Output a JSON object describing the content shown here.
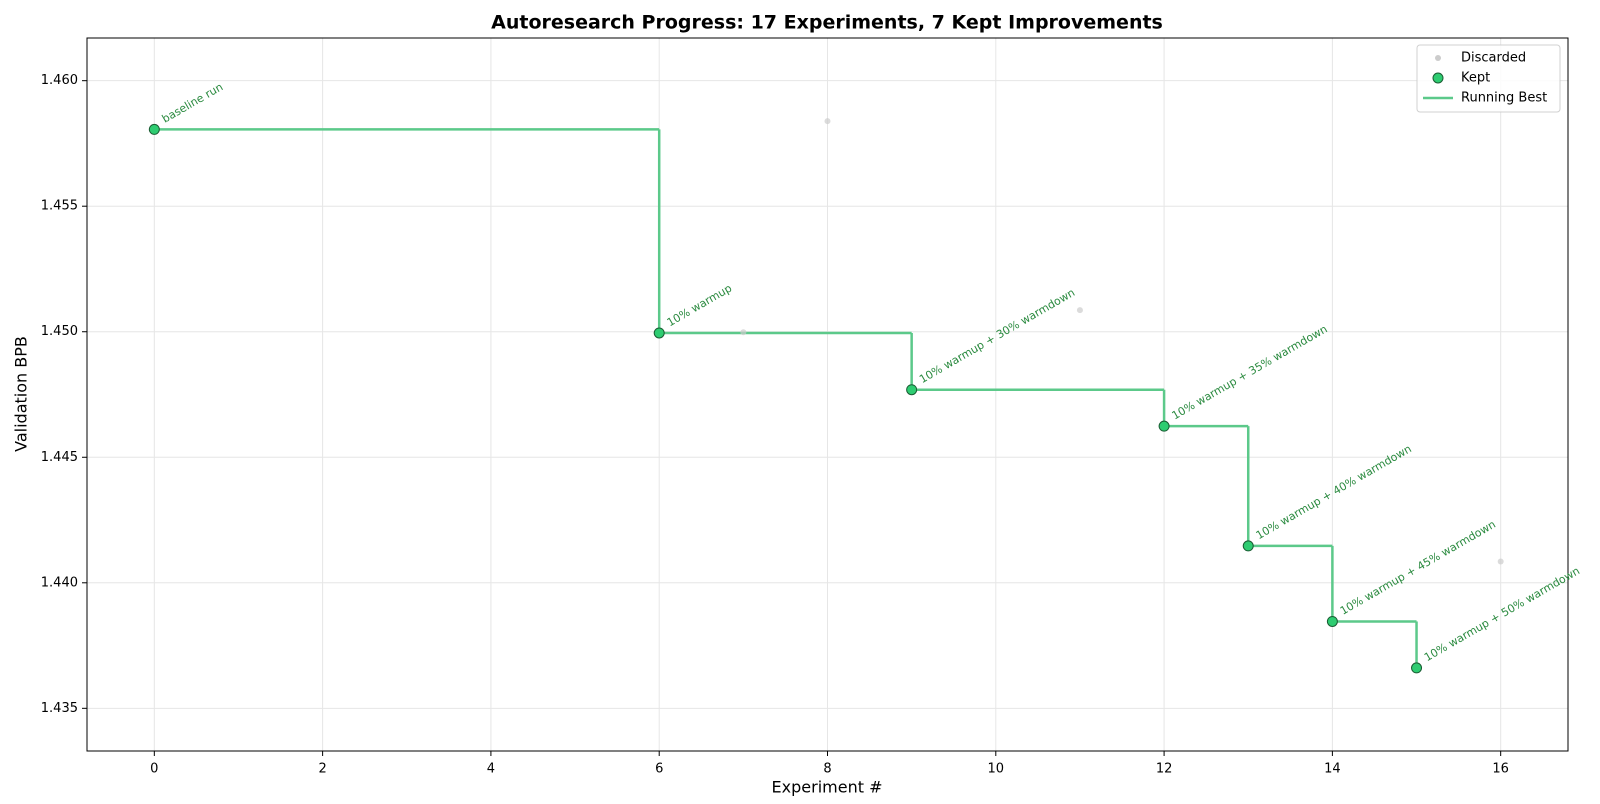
{
  "chart_data": {
    "type": "scatter",
    "title": "Autoresearch Progress: 17 Experiments, 7 Kept Improvements",
    "x_label": "Experiment #",
    "y_label": "Validation BPB",
    "xlim": [
      -0.8,
      16.8
    ],
    "ylim": [
      1.4333,
      1.4617
    ],
    "xticks": [
      0,
      2,
      4,
      6,
      8,
      10,
      12,
      14,
      16
    ],
    "yticks": [
      1.435,
      {
        "value": 1.44,
        "label": "1.440"
      },
      1.445,
      {
        "value": 1.45,
        "label": "1.450"
      },
      1.455,
      {
        "value": 1.46,
        "label": "1.460"
      }
    ],
    "grid": true,
    "legend": "upper right",
    "series": [
      {
        "name": "Discarded",
        "color": "#cccccc",
        "x": [
          7,
          8,
          11,
          16
        ],
        "values": [
          1.44998,
          1.45839,
          1.45086,
          1.44085
        ]
      },
      {
        "name": "Kept",
        "color": "#2ecc71",
        "x": [
          0,
          6,
          9,
          12,
          13,
          14,
          15
        ],
        "values": [
          1.45806,
          1.44995,
          1.44769,
          1.44624,
          1.44147,
          1.43846,
          1.43661
        ],
        "point_labels": [
          "baseline run",
          "10% warmup",
          "10% warmup + 30% warmdown",
          "10% warmup + 35% warmdown",
          "10% warmup + 40% warmdown",
          "10% warmup + 45% warmdown",
          "10% warmup + 50% warmdown"
        ]
      },
      {
        "name": "Running Best",
        "color": "#5cc98a",
        "step_of": "Kept"
      }
    ]
  }
}
